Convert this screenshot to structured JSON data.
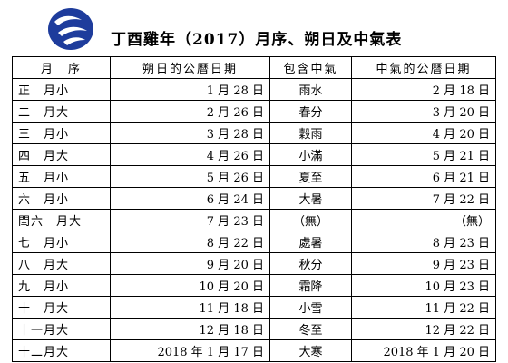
{
  "title": "丁酉雞年（2017）月序、朔日及中氣表",
  "headers": [
    "月　序",
    "朔日的公曆日期",
    "包含中氣",
    "中氣的公曆日期"
  ],
  "rows": [
    {
      "month": "正　月小",
      "new_moon": "1 月 28 日",
      "term": "雨水",
      "term_date": "2 月 18 日"
    },
    {
      "month": "二　月大",
      "new_moon": "2 月 26 日",
      "term": "春分",
      "term_date": "3 月 20 日"
    },
    {
      "month": "三　月小",
      "new_moon": "3 月 28 日",
      "term": "穀雨",
      "term_date": "4 月 20 日"
    },
    {
      "month": "四　月大",
      "new_moon": "4 月 26 日",
      "term": "小滿",
      "term_date": "5 月 21 日"
    },
    {
      "month": "五　月小",
      "new_moon": "5 月 26 日",
      "term": "夏至",
      "term_date": "6 月 21 日"
    },
    {
      "month": "六　月小",
      "new_moon": "6 月 24 日",
      "term": "大暑",
      "term_date": "7 月 22 日"
    },
    {
      "month": "閏六　月大",
      "new_moon": "7 月 23 日",
      "term": "（無）",
      "term_date": "（無）"
    },
    {
      "month": "七　月小",
      "new_moon": "8 月 22 日",
      "term": "處暑",
      "term_date": "8 月 23 日"
    },
    {
      "month": "八　月大",
      "new_moon": "9 月 20 日",
      "term": "秋分",
      "term_date": "9 月 23 日"
    },
    {
      "month": "九　月小",
      "new_moon": "10 月 20 日",
      "term": "霜降",
      "term_date": "10 月 23 日"
    },
    {
      "month": "十　月大",
      "new_moon": "11 月 18 日",
      "term": "小雪",
      "term_date": "11 月 22 日"
    },
    {
      "month": "十一月大",
      "new_moon": "12 月 18 日",
      "term": "冬至",
      "term_date": "12 月 22 日"
    },
    {
      "month": "十二月大",
      "new_moon": "2018 年 1 月 17 日",
      "term": "大寒",
      "term_date": "2018 年 1 月 20 日"
    }
  ],
  "colors": {
    "logo_blue": "#1e3c9c",
    "text": "#000000",
    "border": "#000000"
  },
  "logo_icon": "observatory-logo-icon"
}
